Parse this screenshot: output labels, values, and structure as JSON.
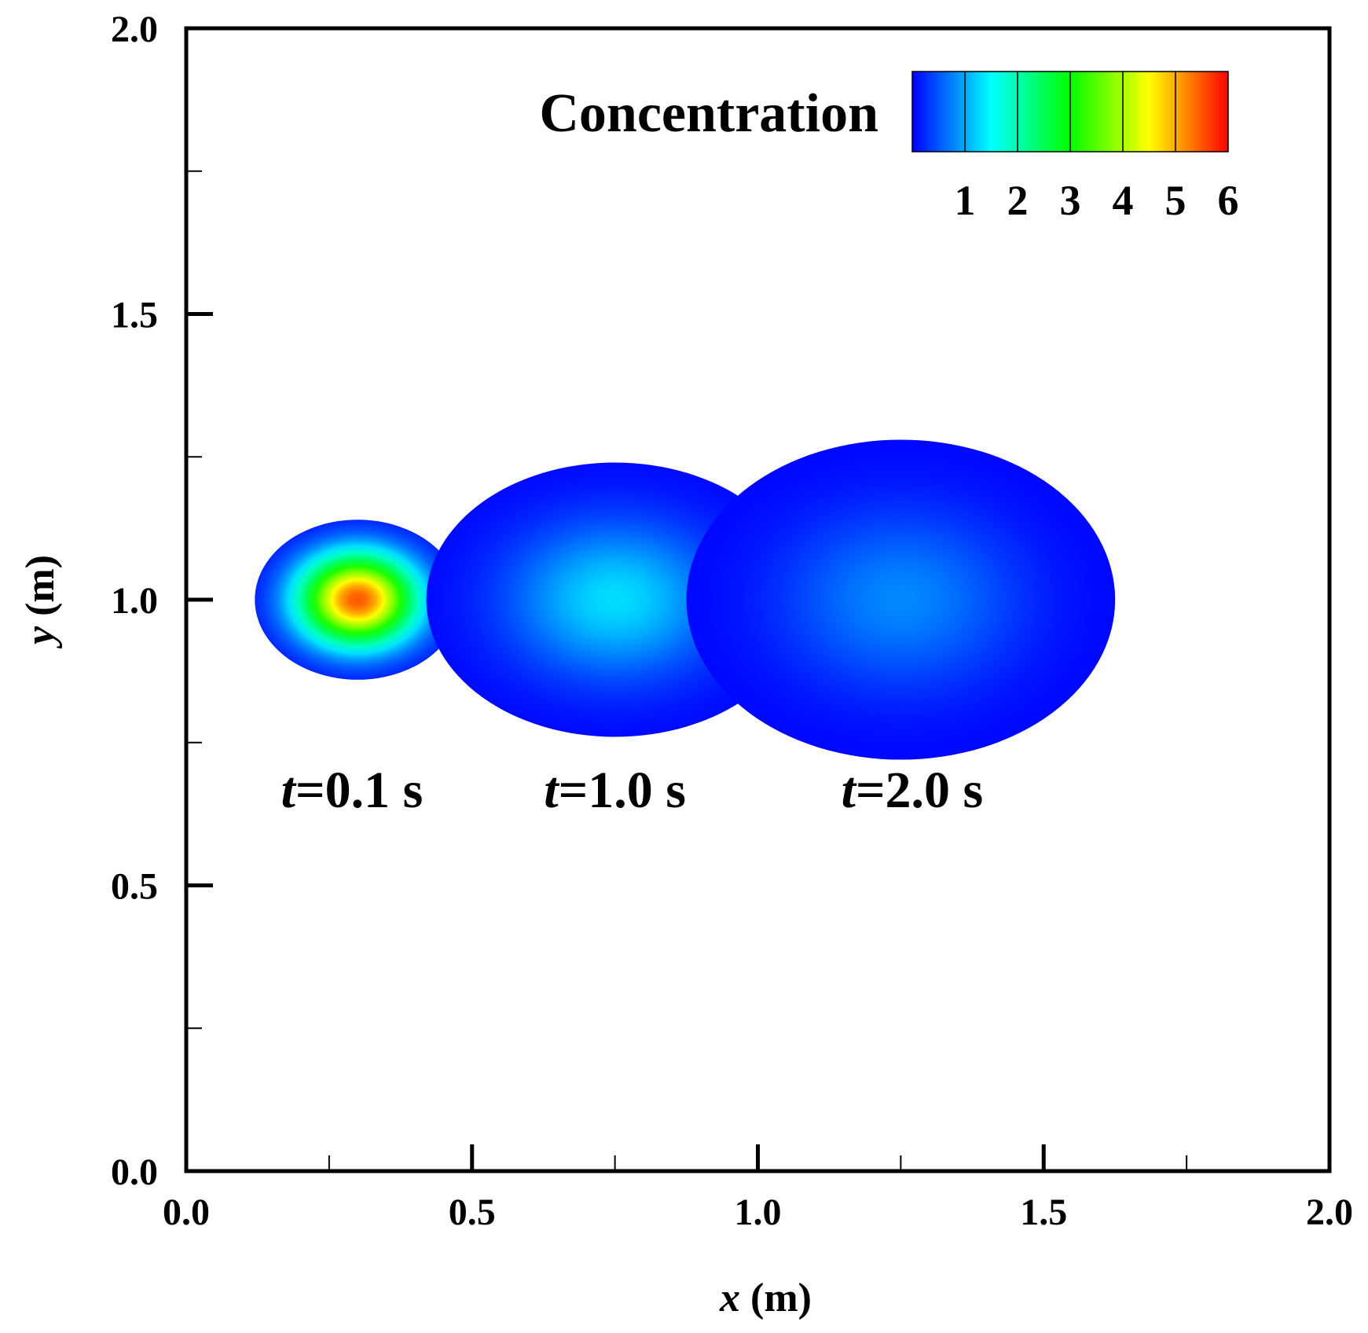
{
  "chart_data": {
    "type": "heatmap",
    "title": "",
    "xlabel": {
      "var": "x",
      "unit": " (m)"
    },
    "ylabel": {
      "var": "y",
      "unit": " (m)"
    },
    "xlim": [
      0,
      2
    ],
    "ylim": [
      0,
      2
    ],
    "x_ticks": [
      "0.0",
      "0.5",
      "1.0",
      "1.5",
      "2.0"
    ],
    "y_ticks": [
      "0.0",
      "0.5",
      "1.0",
      "1.5",
      "2.0"
    ],
    "grid": false,
    "colorbar": {
      "title": "Concentration",
      "placement": "top-right",
      "ticks": [
        "1",
        "2",
        "3",
        "4",
        "5",
        "6"
      ],
      "levels": [
        0,
        1,
        2,
        3,
        4,
        5,
        6
      ],
      "colors": [
        "#0000ff",
        "#00ffff",
        "#00ff00",
        "#ffff00",
        "#ff0000"
      ]
    },
    "plumes": [
      {
        "time_label": {
          "var": "t",
          "text": "=0.1 s"
        },
        "center": [
          0.3,
          1.0
        ],
        "radius_x": 0.18,
        "radius_y": 0.14,
        "peak": 5.5,
        "label_at": [
          0.29,
          0.67
        ]
      },
      {
        "time_label": {
          "var": "t",
          "text": "=1.0 s"
        },
        "center": [
          0.75,
          1.0
        ],
        "radius_x": 0.33,
        "radius_y": 0.24,
        "peak": 1.3,
        "label_at": [
          0.75,
          0.67
        ]
      },
      {
        "time_label": {
          "var": "t",
          "text": "=2.0 s"
        },
        "center": [
          1.25,
          1.0
        ],
        "radius_x": 0.375,
        "radius_y": 0.28,
        "peak": 0.8,
        "label_at": [
          1.27,
          0.67
        ]
      }
    ]
  }
}
